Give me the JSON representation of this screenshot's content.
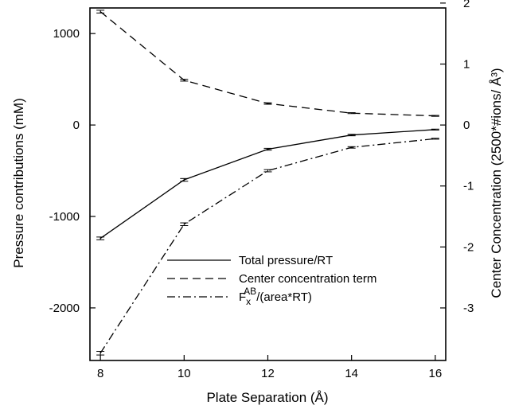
{
  "chart_data": {
    "type": "line",
    "xlabel": "Plate Separation (Å)",
    "ylabel": "Pressure contributions (mM)",
    "y2label": "Center Concentration (2500*#ions/ Å³)",
    "x": [
      8,
      10,
      12,
      14,
      16
    ],
    "xlim": [
      7.75,
      16.25
    ],
    "ylim": [
      -2575,
      1280
    ],
    "y2lim": [
      -3.862,
      1.92
    ],
    "x_ticks": [
      8,
      10,
      12,
      14,
      16
    ],
    "y_ticks": [
      1000,
      0,
      -1000,
      -2000
    ],
    "y2_ticks": [
      2,
      1,
      0,
      -1,
      -2,
      -3
    ],
    "grid": false,
    "legend_position": "center-right",
    "series": [
      {
        "name": "Total pressure/RT",
        "name_main": "Total pressure/RT",
        "dash": "solid",
        "values": [
          -1240,
          -600,
          -265,
          -110,
          -50
        ],
        "errors": [
          15,
          15,
          10,
          8,
          5
        ]
      },
      {
        "name": "Center concentration term",
        "name_main": "Center concentration term",
        "dash": "dashed",
        "values": [
          1240,
          490,
          235,
          130,
          100
        ],
        "errors": [
          15,
          10,
          8,
          5,
          5
        ]
      },
      {
        "name": "F_x^AB/(area*RT)",
        "name_main": "F",
        "name_sub": "x",
        "name_sup": "AB",
        "name_rest": "/(area*RT)",
        "dash": "dashdot",
        "values": [
          -2495,
          -1085,
          -500,
          -245,
          -150
        ],
        "errors": [
          20,
          15,
          12,
          8,
          5
        ]
      }
    ]
  }
}
